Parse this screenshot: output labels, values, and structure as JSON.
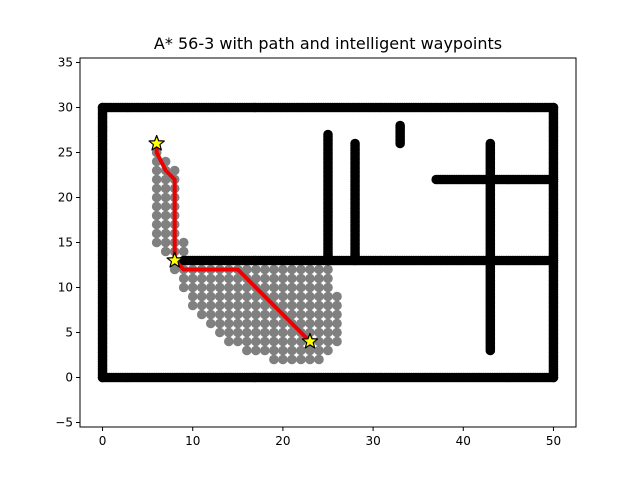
{
  "chart_data": {
    "type": "scatter",
    "title": "A* 56-3 with path and intelligent waypoints",
    "xlabel": "",
    "ylabel": "",
    "xlim": [
      -2.5,
      52.5
    ],
    "ylim": [
      -5.5,
      35.5
    ],
    "x_ticks": [
      0,
      10,
      20,
      30,
      40,
      50
    ],
    "y_ticks": [
      -5,
      0,
      5,
      10,
      15,
      20,
      25,
      30,
      35
    ],
    "grid": false,
    "colors": {
      "obstacle": "#000000",
      "explored": "#808080",
      "path": "#ee0000",
      "waypoint_fill": "#ffff00",
      "waypoint_edge": "#000000"
    },
    "obstacle_segments": [
      {
        "x": [
          0,
          50
        ],
        "y": [
          30,
          30
        ]
      },
      {
        "x": [
          0,
          50
        ],
        "y": [
          0,
          0
        ]
      },
      {
        "x": [
          0,
          0
        ],
        "y": [
          0,
          30
        ]
      },
      {
        "x": [
          50,
          50
        ],
        "y": [
          0,
          30
        ]
      },
      {
        "x": [
          25,
          25
        ],
        "y": [
          13,
          27
        ]
      },
      {
        "x": [
          28,
          28
        ],
        "y": [
          13,
          26
        ]
      },
      {
        "x": [
          33,
          33
        ],
        "y": [
          26,
          28
        ]
      },
      {
        "x": [
          37,
          50
        ],
        "y": [
          22,
          22
        ]
      },
      {
        "x": [
          43,
          43
        ],
        "y": [
          3,
          26
        ]
      },
      {
        "x": [
          9,
          50
        ],
        "y": [
          13,
          13
        ]
      }
    ],
    "explored_rows": [
      {
        "y": 25,
        "x": [
          6,
          6
        ]
      },
      {
        "y": 24,
        "x": [
          6,
          7
        ]
      },
      {
        "y": 23,
        "x": [
          6,
          8
        ]
      },
      {
        "y": 22,
        "x": [
          6,
          8
        ]
      },
      {
        "y": 21,
        "x": [
          6,
          8
        ]
      },
      {
        "y": 20,
        "x": [
          6,
          8
        ]
      },
      {
        "y": 19,
        "x": [
          6,
          8
        ]
      },
      {
        "y": 18,
        "x": [
          6,
          8
        ]
      },
      {
        "y": 17,
        "x": [
          6,
          8
        ]
      },
      {
        "y": 16,
        "x": [
          6,
          8
        ]
      },
      {
        "y": 15,
        "x": [
          6,
          9
        ]
      },
      {
        "y": 14,
        "x": [
          7,
          9
        ]
      },
      {
        "y": 12,
        "x": [
          8,
          25
        ]
      },
      {
        "y": 11,
        "x": [
          9,
          25
        ]
      },
      {
        "y": 10,
        "x": [
          9,
          25
        ]
      },
      {
        "y": 9,
        "x": [
          10,
          26
        ]
      },
      {
        "y": 8,
        "x": [
          10,
          26
        ]
      },
      {
        "y": 7,
        "x": [
          11,
          26
        ]
      },
      {
        "y": 6,
        "x": [
          12,
          26
        ]
      },
      {
        "y": 5,
        "x": [
          13,
          26
        ]
      },
      {
        "y": 4,
        "x": [
          14,
          26
        ]
      },
      {
        "y": 3,
        "x": [
          16,
          25
        ]
      },
      {
        "y": 2,
        "x": [
          19,
          24
        ]
      }
    ],
    "path": {
      "x": [
        6,
        6,
        7,
        8,
        8,
        8,
        9,
        15,
        23
      ],
      "y": [
        26,
        25,
        23,
        22,
        13,
        13,
        12,
        12,
        4
      ]
    },
    "waypoints": {
      "x": [
        6,
        8,
        23
      ],
      "y": [
        26,
        13,
        4
      ]
    }
  }
}
